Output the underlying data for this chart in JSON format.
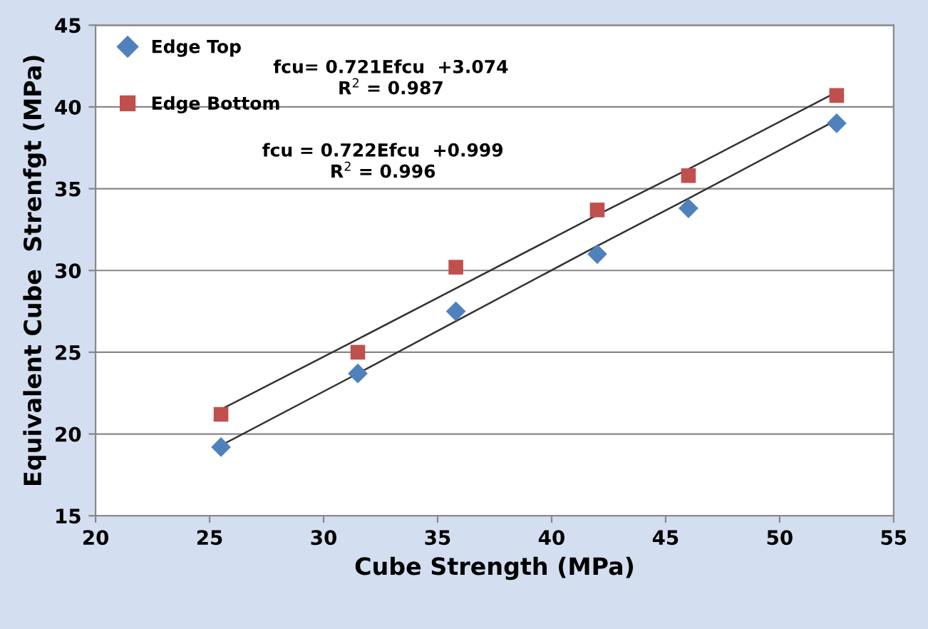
{
  "chart_data": {
    "type": "scatter",
    "xlabel": "Cube Strength (MPa)",
    "ylabel": "Equivalent Cube  Strenfgt (MPa)",
    "xlim": [
      20,
      55
    ],
    "xticks": [
      20,
      25,
      30,
      35,
      40,
      45,
      50,
      55
    ],
    "ylim": [
      15,
      45
    ],
    "yticks": [
      15,
      20,
      25,
      30,
      35,
      40,
      45
    ],
    "grid": "y",
    "legend": "top left",
    "x": [
      25.5,
      31.5,
      35.8,
      42,
      46,
      52.5
    ],
    "series": [
      {
        "name": "Edge Top",
        "color": "#4f81bd",
        "marker": "diamond",
        "values": [
          19.2,
          23.7,
          27.5,
          31.0,
          33.8,
          39.0
        ]
      },
      {
        "name": "Edge Bottom",
        "color": "#c0504d",
        "marker": "square",
        "values": [
          21.2,
          25.0,
          30.2,
          33.7,
          35.8,
          40.7
        ]
      },
      {
        "type": "line",
        "color": "#333333",
        "values": [
          19.3,
          23.7,
          26.9,
          31.5,
          34.4,
          39.2
        ]
      },
      {
        "type": "line",
        "color": "#333333",
        "values": [
          21.5,
          25.8,
          28.9,
          33.4,
          36.2,
          40.9
        ]
      }
    ],
    "annotations": [
      "fcu= 0.721Efcu  +3.074\nR$^{2}$ = 0.987",
      "fcu = 0.722Efcu  +0.999\nR$^{2}$ = 0.996"
    ]
  }
}
